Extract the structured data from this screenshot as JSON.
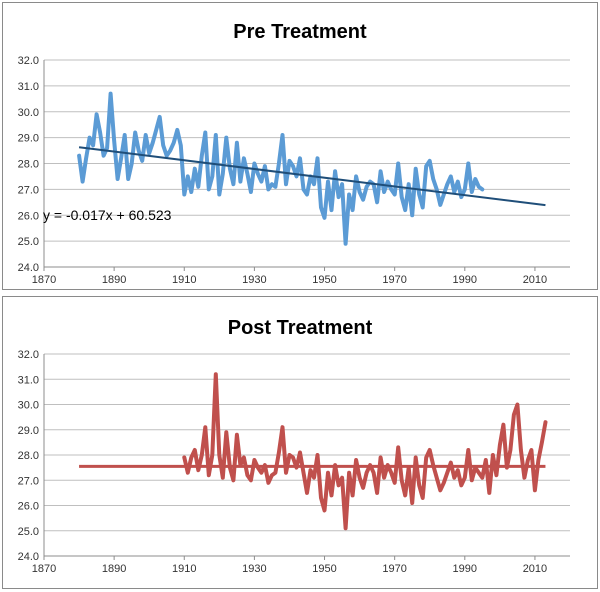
{
  "chart_data": [
    {
      "type": "line",
      "title": "Pre Treatment",
      "xlabel": "",
      "ylabel": "",
      "xlim": [
        1870,
        2020
      ],
      "ylim": [
        24.0,
        32.0
      ],
      "x_ticks": [
        "1870",
        "1890",
        "1910",
        "1930",
        "1950",
        "1970",
        "1990",
        "2010"
      ],
      "y_ticks": [
        "24.0",
        "25.0",
        "26.0",
        "27.0",
        "28.0",
        "29.0",
        "30.0",
        "31.0",
        "32.0"
      ],
      "grid": "horizontal",
      "legend": "none",
      "series": [
        {
          "color": "#5b9bd5",
          "x": [
            1880,
            1881,
            1882,
            1883,
            1884,
            1885,
            1886,
            1887,
            1888,
            1889,
            1890,
            1891,
            1892,
            1893,
            1894,
            1895,
            1896,
            1897,
            1898,
            1899,
            1900,
            1901,
            1902,
            1903,
            1904,
            1905,
            1906,
            1907,
            1908,
            1909,
            1910,
            1911,
            1912,
            1913,
            1914,
            1915,
            1916,
            1917,
            1918,
            1919,
            1920,
            1921,
            1922,
            1923,
            1924,
            1925,
            1926,
            1927,
            1928,
            1929,
            1930,
            1931,
            1932,
            1933,
            1934,
            1935,
            1936,
            1937,
            1938,
            1939,
            1940,
            1941,
            1942,
            1943,
            1944,
            1945,
            1946,
            1947,
            1948,
            1949,
            1950,
            1951,
            1952,
            1953,
            1954,
            1955,
            1956,
            1957,
            1958,
            1959,
            1960,
            1961,
            1962,
            1963,
            1964,
            1965,
            1966,
            1967,
            1968,
            1969,
            1970,
            1971,
            1972,
            1973,
            1974,
            1975,
            1976,
            1977,
            1978,
            1979,
            1980,
            1981,
            1982,
            1983,
            1984,
            1985,
            1986,
            1987,
            1988,
            1989,
            1990,
            1991,
            1992,
            1993,
            1994,
            1995
          ],
          "values": [
            28.3,
            27.3,
            28.2,
            29.0,
            28.7,
            29.9,
            29.2,
            28.3,
            28.6,
            30.7,
            28.9,
            27.4,
            28.2,
            29.1,
            27.4,
            28.0,
            29.2,
            28.5,
            28.1,
            29.1,
            28.4,
            28.8,
            29.3,
            29.8,
            28.7,
            28.3,
            28.5,
            28.8,
            29.3,
            28.7,
            26.8,
            27.5,
            26.9,
            27.8,
            27.1,
            28.3,
            29.2,
            27.0,
            27.5,
            29.1,
            26.8,
            27.6,
            29.0,
            27.8,
            27.2,
            28.8,
            27.3,
            28.2,
            27.6,
            26.9,
            28.0,
            27.6,
            27.3,
            27.9,
            27.0,
            27.2,
            27.1,
            28.0,
            29.1,
            27.2,
            28.1,
            27.9,
            27.5,
            28.2,
            27.0,
            26.8,
            27.5,
            27.2,
            28.2,
            26.3,
            25.9,
            27.3,
            26.2,
            27.7,
            26.7,
            27.2,
            24.9,
            26.8,
            26.2,
            27.5,
            26.9,
            26.6,
            27.1,
            27.3,
            27.2,
            26.5,
            27.7,
            26.9,
            27.3,
            27.0,
            26.8,
            28.0,
            26.7,
            26.2,
            27.2,
            26.0,
            27.8,
            26.8,
            26.3,
            27.9,
            28.1,
            27.4,
            27.0,
            26.4,
            26.8,
            27.2,
            27.5,
            26.9,
            27.3,
            26.7,
            27.0,
            28.0,
            26.9,
            27.4,
            27.1,
            27.0
          ]
        }
      ],
      "trendline": {
        "x": [
          1880,
          2013
        ],
        "values": [
          28.63,
          26.39
        ],
        "color": "#1f4e79",
        "equation": "y = -0.017x + 60.523"
      }
    },
    {
      "type": "line",
      "title": "Post Treatment",
      "xlabel": "",
      "ylabel": "",
      "xlim": [
        1870,
        2020
      ],
      "ylim": [
        24.0,
        32.0
      ],
      "x_ticks": [
        "1870",
        "1890",
        "1910",
        "1930",
        "1950",
        "1970",
        "1990",
        "2010"
      ],
      "y_ticks": [
        "24.0",
        "25.0",
        "26.0",
        "27.0",
        "28.0",
        "29.0",
        "30.0",
        "31.0",
        "32.0"
      ],
      "grid": "horizontal",
      "legend": "none",
      "series": [
        {
          "color": "#c0504d",
          "x": [
            1910,
            1911,
            1912,
            1913,
            1914,
            1915,
            1916,
            1917,
            1918,
            1919,
            1920,
            1921,
            1922,
            1923,
            1924,
            1925,
            1926,
            1927,
            1928,
            1929,
            1930,
            1931,
            1932,
            1933,
            1934,
            1935,
            1936,
            1937,
            1938,
            1939,
            1940,
            1941,
            1942,
            1943,
            1944,
            1945,
            1946,
            1947,
            1948,
            1949,
            1950,
            1951,
            1952,
            1953,
            1954,
            1955,
            1956,
            1957,
            1958,
            1959,
            1960,
            1961,
            1962,
            1963,
            1964,
            1965,
            1966,
            1967,
            1968,
            1969,
            1970,
            1971,
            1972,
            1973,
            1974,
            1975,
            1976,
            1977,
            1978,
            1979,
            1980,
            1981,
            1982,
            1983,
            1984,
            1985,
            1986,
            1987,
            1988,
            1989,
            1990,
            1991,
            1992,
            1993,
            1994,
            1995,
            1996,
            1997,
            1998,
            1999,
            2000,
            2001,
            2002,
            2003,
            2004,
            2005,
            2006,
            2007,
            2008,
            2009,
            2010,
            2011,
            2012,
            2013
          ],
          "values": [
            27.9,
            27.3,
            27.9,
            28.2,
            27.4,
            28.0,
            29.1,
            27.2,
            28.0,
            31.2,
            28.0,
            27.1,
            28.9,
            27.5,
            27.0,
            28.8,
            27.6,
            27.9,
            27.2,
            27.0,
            27.8,
            27.5,
            27.3,
            27.6,
            26.9,
            27.2,
            27.3,
            28.1,
            29.1,
            27.3,
            28.0,
            27.9,
            27.5,
            28.1,
            27.3,
            26.5,
            27.4,
            27.1,
            28.0,
            26.3,
            25.8,
            27.3,
            26.4,
            27.6,
            26.8,
            27.1,
            25.1,
            27.3,
            26.4,
            27.8,
            27.1,
            26.7,
            27.3,
            27.6,
            27.3,
            26.5,
            27.9,
            27.1,
            27.6,
            27.3,
            26.9,
            28.3,
            27.0,
            26.4,
            27.5,
            26.1,
            27.9,
            26.8,
            26.3,
            27.9,
            28.2,
            27.6,
            27.1,
            26.6,
            26.9,
            27.3,
            27.7,
            27.1,
            27.4,
            26.8,
            27.1,
            28.2,
            27.0,
            27.5,
            27.3,
            27.1,
            27.8,
            26.5,
            28.0,
            27.2,
            28.4,
            29.2,
            27.5,
            28.2,
            29.6,
            30.0,
            28.2,
            27.1,
            27.8,
            28.2,
            26.6,
            27.8,
            28.5,
            29.3
          ]
        }
      ],
      "reference_line": {
        "x": [
          1880,
          2013
        ],
        "values": [
          27.55,
          27.55
        ],
        "color": "#c0504d"
      }
    }
  ]
}
